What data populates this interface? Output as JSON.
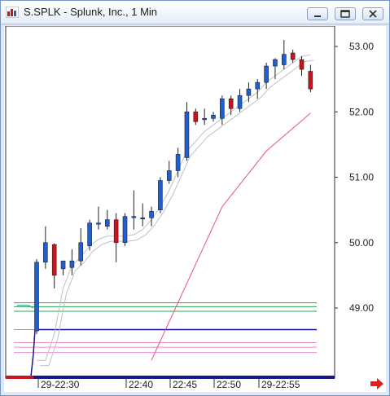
{
  "window": {
    "title": "S.SPLK - Splunk, Inc., 1 Min",
    "icon": "chart-app-icon",
    "buttons": [
      "minimize-icon",
      "restore-icon",
      "close-icon"
    ]
  },
  "colors": {
    "up": "#1f5fd0",
    "down": "#c8141e",
    "ma_fast": "#b9c3c9",
    "ma_slow": "#e8508c",
    "level_green": "#2ea84e",
    "level_pink": "#e890c8",
    "level_navy": "#18188c",
    "scroll_arrow": "#e02020"
  },
  "chart_data": {
    "type": "candlestick",
    "ylim": [
      48.2,
      53.3
    ],
    "yticks": [
      "53.00",
      "52.00",
      "51.00",
      "50.00",
      "49.00"
    ],
    "xticks": [
      "29-22:30",
      "22:40",
      "22:45",
      "22:50",
      "29-22:55"
    ],
    "candles": [
      {
        "o": 48.65,
        "h": 49.75,
        "l": 48.6,
        "c": 49.7
      },
      {
        "o": 49.7,
        "h": 50.25,
        "l": 49.6,
        "c": 50.0
      },
      {
        "o": 49.97,
        "h": 49.99,
        "l": 49.3,
        "c": 49.5
      },
      {
        "o": 49.6,
        "h": 49.72,
        "l": 49.5,
        "c": 49.72
      },
      {
        "o": 49.62,
        "h": 49.9,
        "l": 49.5,
        "c": 49.72
      },
      {
        "o": 49.72,
        "h": 50.22,
        "l": 49.65,
        "c": 50.0
      },
      {
        "o": 49.95,
        "h": 50.35,
        "l": 49.88,
        "c": 50.3
      },
      {
        "o": 50.3,
        "h": 50.55,
        "l": 50.2,
        "c": 50.3
      },
      {
        "o": 50.25,
        "h": 50.5,
        "l": 50.2,
        "c": 50.35
      },
      {
        "o": 50.35,
        "h": 50.45,
        "l": 49.7,
        "c": 50.0
      },
      {
        "o": 50.0,
        "h": 50.45,
        "l": 49.95,
        "c": 50.4
      },
      {
        "o": 50.4,
        "h": 50.8,
        "l": 50.2,
        "c": 50.4
      },
      {
        "o": 50.38,
        "h": 50.6,
        "l": 50.25,
        "c": 50.38
      },
      {
        "o": 50.38,
        "h": 50.55,
        "l": 50.25,
        "c": 50.48
      },
      {
        "o": 50.5,
        "h": 51.0,
        "l": 50.45,
        "c": 50.95
      },
      {
        "o": 50.95,
        "h": 51.25,
        "l": 50.9,
        "c": 51.1
      },
      {
        "o": 51.1,
        "h": 51.45,
        "l": 51.0,
        "c": 51.35
      },
      {
        "o": 51.3,
        "h": 52.15,
        "l": 51.25,
        "c": 52.0
      },
      {
        "o": 52.0,
        "h": 52.05,
        "l": 51.8,
        "c": 51.85
      },
      {
        "o": 51.88,
        "h": 52.05,
        "l": 51.8,
        "c": 51.9
      },
      {
        "o": 51.9,
        "h": 52.0,
        "l": 51.85,
        "c": 51.95
      },
      {
        "o": 51.9,
        "h": 52.25,
        "l": 51.8,
        "c": 52.2
      },
      {
        "o": 52.2,
        "h": 52.25,
        "l": 51.95,
        "c": 52.05
      },
      {
        "o": 52.05,
        "h": 52.35,
        "l": 52.0,
        "c": 52.25
      },
      {
        "o": 52.25,
        "h": 52.45,
        "l": 52.15,
        "c": 52.35
      },
      {
        "o": 52.35,
        "h": 52.5,
        "l": 52.2,
        "c": 52.45
      },
      {
        "o": 52.45,
        "h": 52.75,
        "l": 52.35,
        "c": 52.7
      },
      {
        "o": 52.7,
        "h": 52.82,
        "l": 52.5,
        "c": 52.8
      },
      {
        "o": 52.72,
        "h": 53.1,
        "l": 52.65,
        "c": 52.88
      },
      {
        "o": 52.9,
        "h": 52.95,
        "l": 52.75,
        "c": 52.8
      },
      {
        "o": 52.8,
        "h": 52.85,
        "l": 52.55,
        "c": 52.65
      },
      {
        "o": 52.62,
        "h": 52.72,
        "l": 52.3,
        "c": 52.35
      }
    ],
    "ma_fast": [
      48.2,
      48.2,
      48.6,
      49.3,
      49.65,
      49.78,
      49.95,
      50.05,
      50.1,
      50.1,
      50.1,
      50.12,
      50.2,
      50.35,
      50.55,
      50.8,
      51.1,
      51.4,
      51.55,
      51.7,
      51.8,
      51.9,
      52.0,
      52.1,
      52.2,
      52.3,
      52.45,
      52.55,
      52.65,
      52.75,
      52.85,
      52.87
    ],
    "ma_slow": [
      [
        13,
        48.2
      ],
      [
        21,
        50.55
      ],
      [
        26,
        51.4
      ],
      [
        31,
        51.98
      ]
    ],
    "levels": [
      {
        "name": "navy",
        "y": 48.67
      },
      {
        "name": "green",
        "y": 49.08
      },
      {
        "name": "green",
        "y": 49.02
      },
      {
        "name": "green",
        "y": 48.95
      },
      {
        "name": "pink",
        "y": 48.47
      },
      {
        "name": "pink",
        "y": 48.4
      },
      {
        "name": "pink",
        "y": 48.32
      }
    ]
  }
}
